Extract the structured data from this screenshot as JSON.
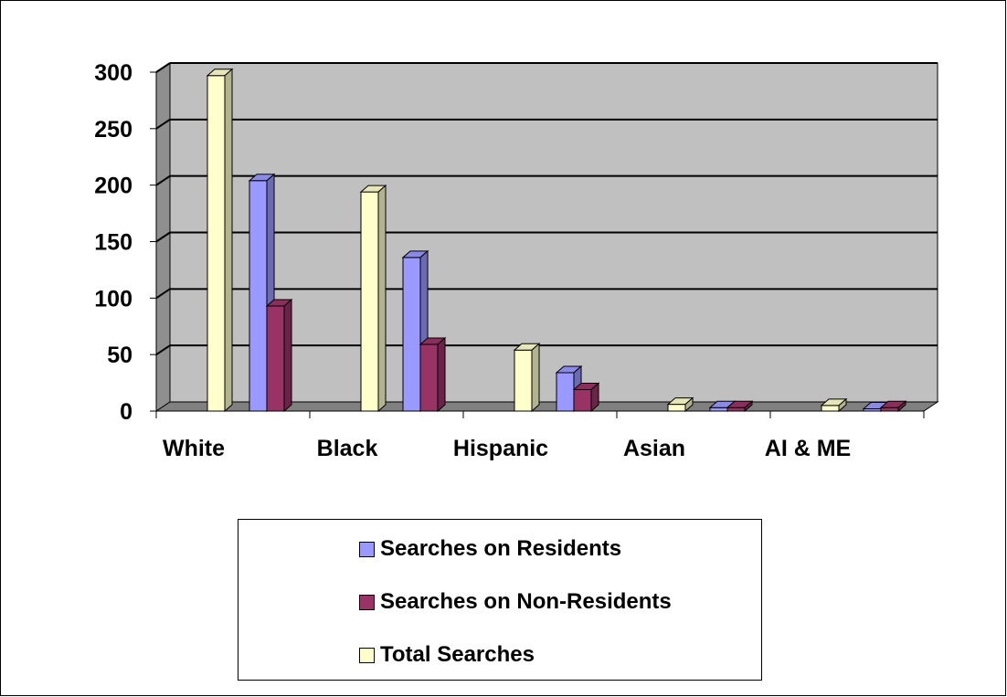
{
  "chart_data": {
    "type": "bar",
    "style": "3d-clustered-column",
    "categories": [
      "White",
      "Black",
      "Hispanic",
      "Asian",
      "AI & ME"
    ],
    "series": [
      {
        "name": "Total Searches",
        "values": [
          297,
          194,
          54,
          6,
          5
        ],
        "color": "#FFFFCC"
      },
      {
        "name": "Searches on Residents",
        "values": [
          204,
          136,
          34,
          3,
          2
        ],
        "color": "#9999FF"
      },
      {
        "name": "Searches on Non-Residents",
        "values": [
          93,
          59,
          19,
          3,
          3
        ],
        "color": "#993366"
      }
    ],
    "ylim": [
      0,
      300
    ],
    "yticks": [
      "0",
      "50",
      "100",
      "150",
      "200",
      "250",
      "300"
    ],
    "grid": true,
    "wall_color": "#C0C0C0",
    "legend_position": "bottom"
  },
  "legend": {
    "items": [
      {
        "label": "Searches on Residents",
        "color": "#9999FF"
      },
      {
        "label": "Searches on Non-Residents",
        "color": "#993366"
      },
      {
        "label": "Total Searches",
        "color": "#FFFFCC"
      }
    ]
  }
}
